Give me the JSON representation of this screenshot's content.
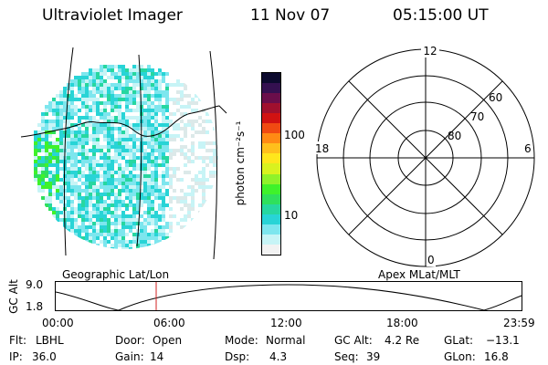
{
  "header": {
    "instrument": "Ultraviolet Imager",
    "date": "11 Nov 07",
    "time": "05:15:00 UT"
  },
  "image_panel": {
    "footer_label": "Geographic Lat/Lon"
  },
  "colorbar": {
    "unit_label": "photon cm⁻²s⁻¹",
    "ticks": [
      "100",
      "10"
    ],
    "colors": [
      "#f2f2f2",
      "#c7f4f6",
      "#7de6ee",
      "#28d4d6",
      "#27d7a0",
      "#2fe05c",
      "#3ff22a",
      "#8ff22a",
      "#d9f21f",
      "#ffe61c",
      "#ffbf1c",
      "#ff8a14",
      "#f04a12",
      "#d11212",
      "#a0102e",
      "#6a0e4a",
      "#341050",
      "#0c0a2e"
    ]
  },
  "polar_plot": {
    "footer_label": "Apex MLat/MLT",
    "mlt_labels": {
      "top": "12",
      "left": "18",
      "right": "6",
      "bottom": "0"
    },
    "mlat_labels": [
      "60",
      "70",
      "80"
    ]
  },
  "altitude_plot": {
    "ylabel": "GC Alt",
    "yticks": [
      "9.0",
      "1.8"
    ],
    "xticks": [
      "00:00",
      "06:00",
      "12:00",
      "18:00",
      "23:59"
    ],
    "marker_color": "#d02020"
  },
  "status": {
    "filter_label": "Flt:",
    "filter_value": "LBHL",
    "door_label": "Door:",
    "door_value": "Open",
    "mode_label": "Mode:",
    "mode_value": "Normal",
    "gcalt_label": "GC Alt:",
    "gcalt_value": "4.2 Re",
    "glat_label": "GLat:",
    "glat_value": "−13.1",
    "ip_label": "IP:",
    "ip_value": "36.0",
    "gain_label": "Gain:",
    "gain_value": "14",
    "dsp_label": "Dsp:",
    "dsp_value": "4.3",
    "seq_label": "Seq:",
    "seq_value": "39",
    "glon_label": "GLon:",
    "glon_value": "16.8"
  }
}
